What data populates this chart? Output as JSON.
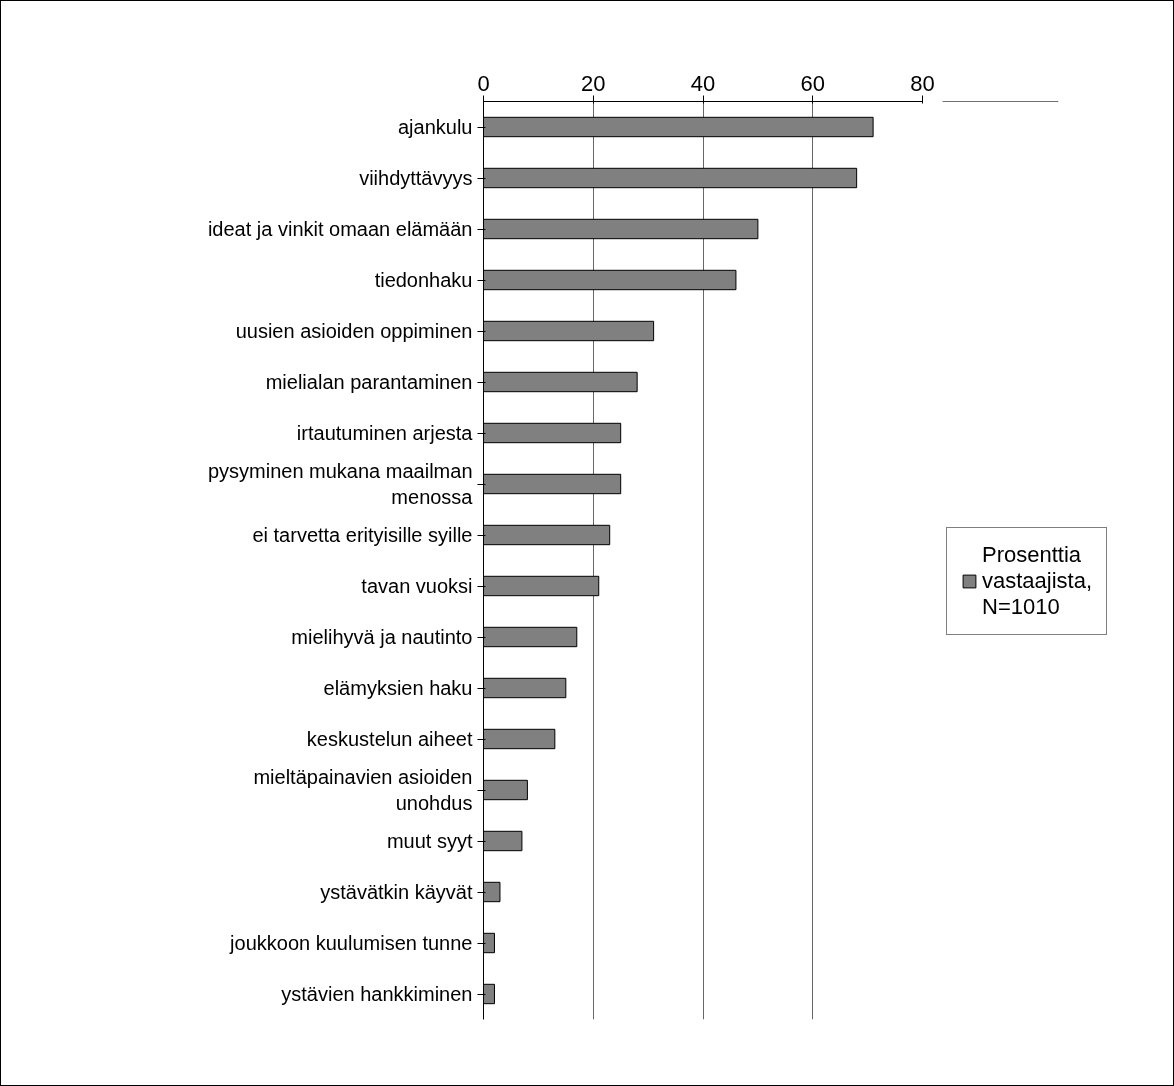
{
  "chart_data": {
    "type": "bar",
    "orientation": "horizontal",
    "categories": [
      "ajankulu",
      "viihdyttävyys",
      "ideat ja vinkit omaan elämään",
      "tiedonhaku",
      "uusien asioiden oppiminen",
      "mielialan parantaminen",
      "irtautuminen arjesta",
      "pysyminen mukana maailman menossa",
      "ei tarvetta erityisille syille",
      "tavan vuoksi",
      "mielihyvä ja nautinto",
      "elämyksien haku",
      "keskustelun aiheet",
      "mieltäpainavien asioiden unohdus",
      "muut syyt",
      "ystävätkin käyvät",
      "joukkoon kuulumisen tunne",
      "ystävien hankkiminen"
    ],
    "series": [
      {
        "name": "Prosenttia vastaajista, N=1010",
        "color": "#808080",
        "values": [
          71,
          68,
          50,
          46,
          31,
          28,
          25,
          25,
          23,
          21,
          17,
          15,
          13,
          8,
          7,
          3,
          2,
          2
        ]
      }
    ],
    "xlim": [
      0,
      80
    ],
    "xticks": [
      0,
      20,
      40,
      60,
      80
    ],
    "grid": "x",
    "legend": "right"
  }
}
